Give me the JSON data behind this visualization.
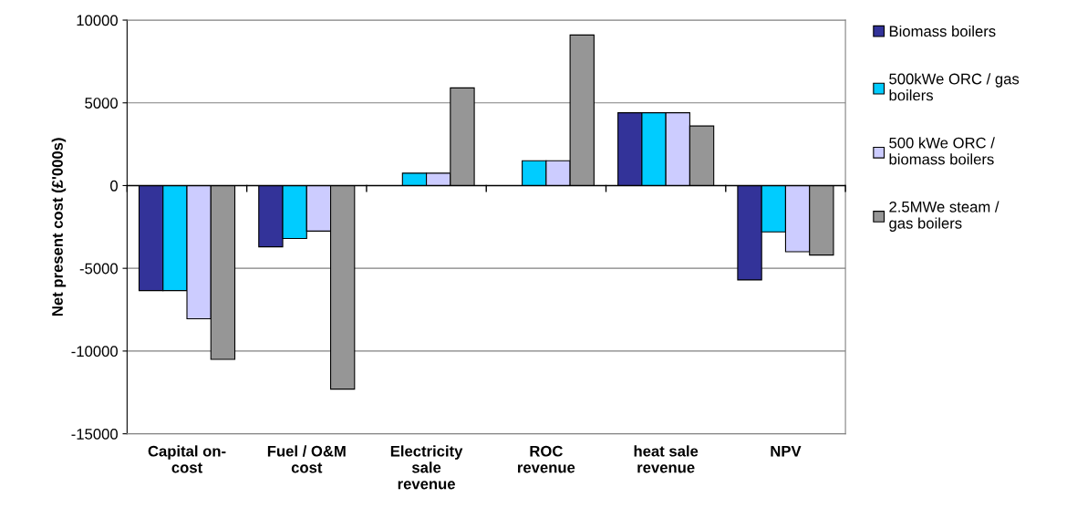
{
  "chart_data": {
    "type": "bar",
    "ylabel": "Net present cost (£'000s)",
    "categories": [
      "Capital on-cost",
      "Fuel / O&M cost",
      "Electricity sale revenue",
      "ROC revenue",
      "heat sale revenue",
      "NPV"
    ],
    "series": [
      {
        "name": "Biomass boilers",
        "color": "#333399",
        "values": [
          -6350,
          -3700,
          null,
          null,
          4400,
          -5700
        ]
      },
      {
        "name": "500kWe ORC / gas boilers",
        "color": "#00ccff",
        "values": [
          -6350,
          -3200,
          750,
          1500,
          4400,
          -2800
        ]
      },
      {
        "name": "500 kWe ORC / biomass boilers",
        "color": "#ccccff",
        "values": [
          -8050,
          -2750,
          750,
          1500,
          4400,
          -4000
        ]
      },
      {
        "name": "2.5MWe steam / gas boilers",
        "color": "#969696",
        "values": [
          -10500,
          -12300,
          5900,
          9100,
          3600,
          -4200
        ]
      }
    ],
    "ylim": [
      -15000,
      10000
    ],
    "yticks": [
      -15000,
      -10000,
      -5000,
      0,
      5000,
      10000
    ],
    "grid": "y",
    "legend": "right"
  }
}
